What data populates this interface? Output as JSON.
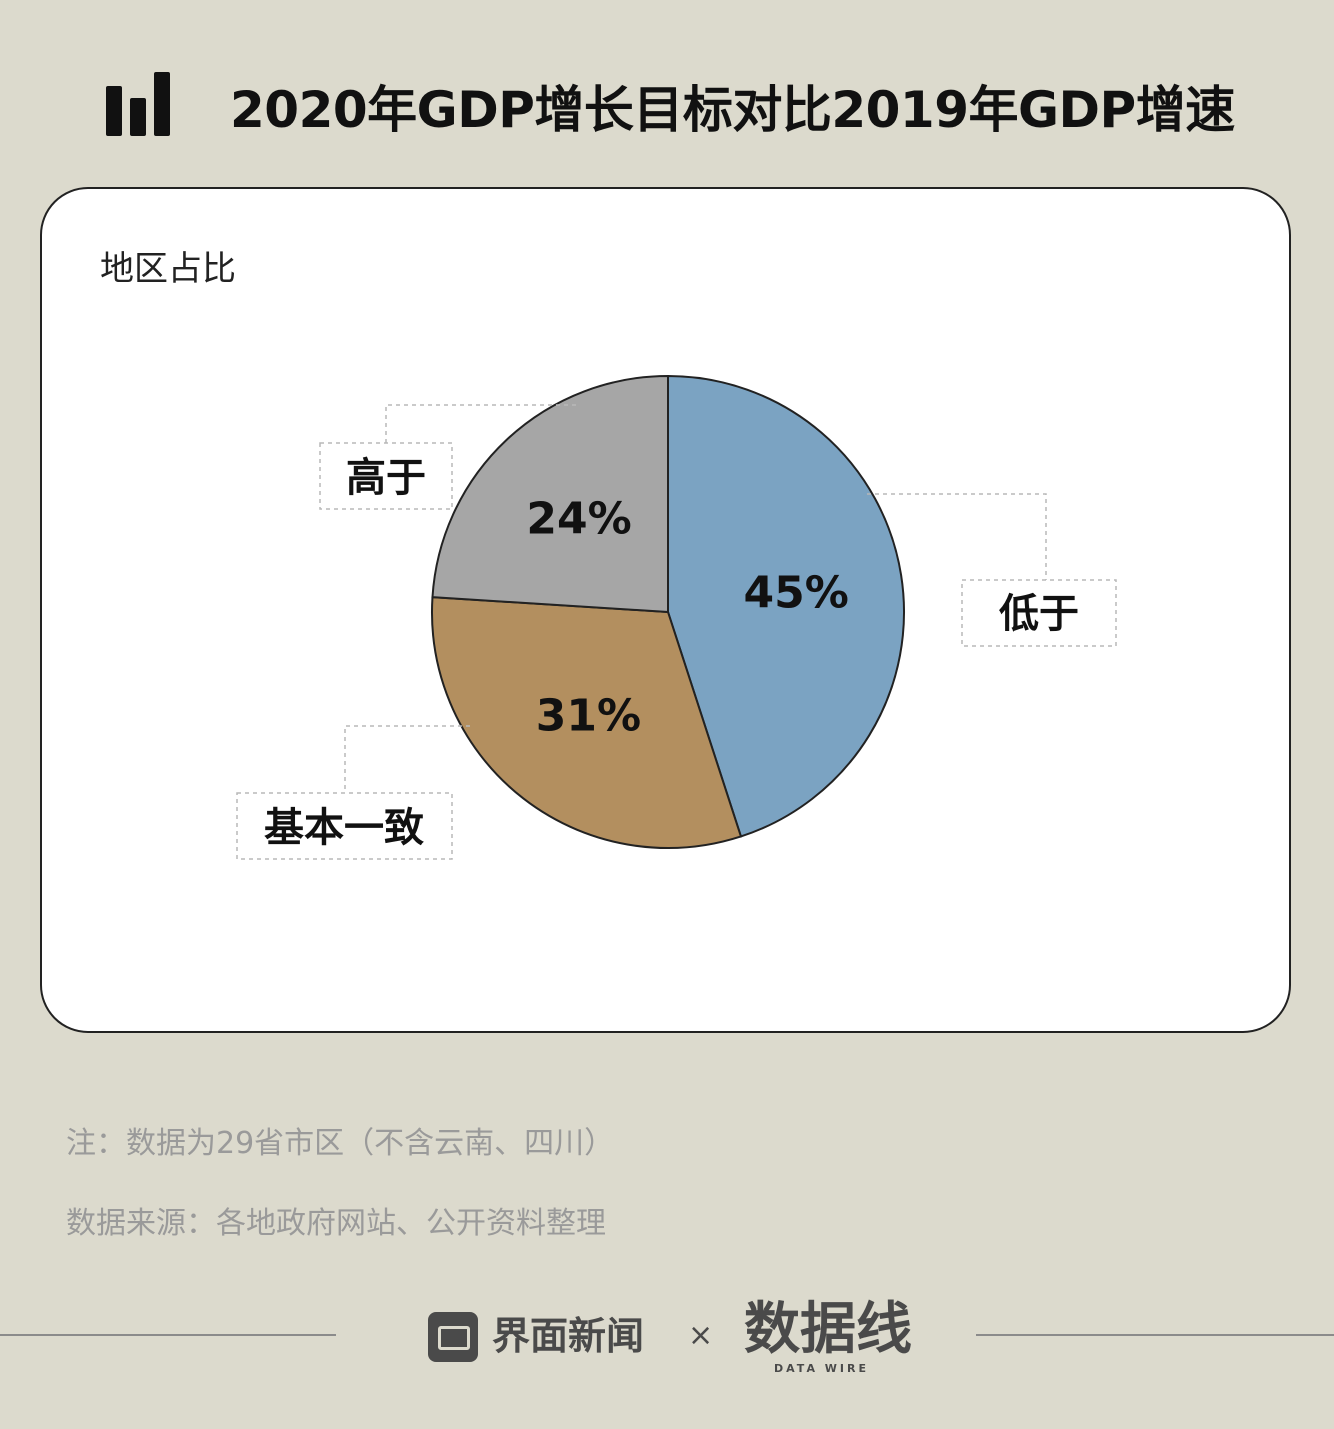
{
  "title": "2020年GDP增长目标对比2019年GDP增速",
  "subtitle": "地区占比",
  "chart_data": {
    "type": "pie",
    "title": "2020年GDP增长目标对比2019年GDP增速",
    "subtitle": "地区占比",
    "slices": [
      {
        "label": "低于",
        "value": 45,
        "value_label": "45%",
        "color": "#7ba3c2"
      },
      {
        "label": "基本一致",
        "value": 31,
        "value_label": "31%",
        "color": "#b38f5f"
      },
      {
        "label": "高于",
        "value": 24,
        "value_label": "24%",
        "color": "#a6a6a6"
      }
    ],
    "start": "12 o'clock",
    "direction": "clockwise",
    "legend": "callout labels"
  },
  "notes": {
    "note": "注：数据为29省市区（不含云南、四川）",
    "source": "数据来源：各地政府网站、公开资料整理"
  },
  "footer": {
    "brand": "界面新闻",
    "separator": "×",
    "partner": "数据线",
    "partner_sub": "DATA WIRE"
  },
  "colors": {
    "background": "#dcdacd",
    "card": "#ffffff",
    "outline": "#222222"
  },
  "icons": {
    "title": "bar-chart-icon",
    "brand": "jiemian-logo-icon"
  }
}
